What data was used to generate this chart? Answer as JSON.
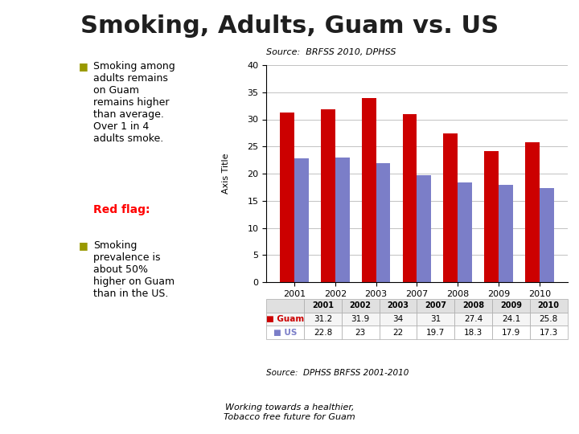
{
  "title": "Smoking, Adults, Guam vs. US",
  "source_top": "Source:  BRFSS 2010, DPHSS",
  "source_bottom": "Source:  DPHSS BRFSS 2001-2010",
  "footer": "Working towards a healthier,\nTobacco free future for Guam",
  "years": [
    "2001",
    "2002",
    "2003",
    "2007",
    "2008",
    "2009",
    "2010"
  ],
  "guam_values": [
    31.2,
    31.9,
    34,
    31,
    27.4,
    24.1,
    25.8
  ],
  "us_values": [
    22.8,
    23,
    22,
    19.7,
    18.3,
    17.9,
    17.3
  ],
  "guam_color": "#CC0000",
  "us_color": "#7B7EC8",
  "ylabel": "Axis Title",
  "ylim": [
    0,
    40
  ],
  "yticks": [
    0,
    5,
    10,
    15,
    20,
    25,
    30,
    35,
    40
  ],
  "bullet1": "Smoking among adults remains on Guam remains higher than average. Over 1 in 4 adults smoke.",
  "red_flag_label": "Red flag:",
  "bullet2": "Smoking prevalence is about 50% higher on Guam than in the US.",
  "bg_color": "#FFFFFF",
  "title_color": "#1F1F1F",
  "title_fontsize": 22,
  "bar_width": 0.35,
  "chart_bg": "#FFFFFF",
  "grid_color": "#AAAAAA",
  "table_guam_color": "#CC0000",
  "table_us_color": "#7B7EC8"
}
